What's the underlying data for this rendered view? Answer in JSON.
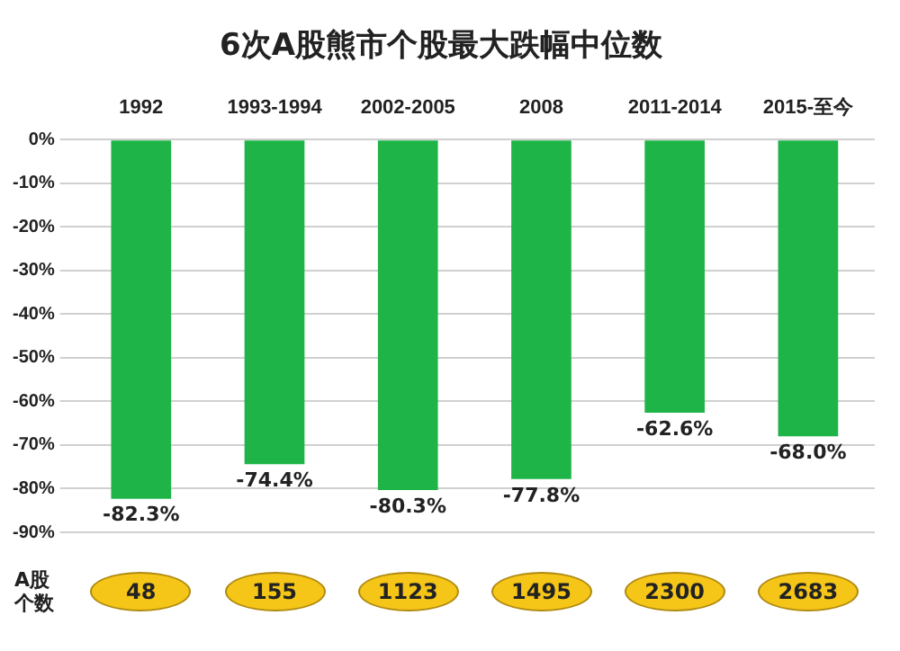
{
  "chart_data": {
    "type": "bar",
    "title": "6次A股熊市个股最大跌幅中位数",
    "categories": [
      "1992",
      "1993-1994",
      "2002-2005",
      "2008",
      "2011-2014",
      "2015-至今"
    ],
    "values": [
      -82.3,
      -74.4,
      -80.3,
      -77.8,
      -62.6,
      -68.0
    ],
    "value_labels": [
      "-82.3%",
      "-74.4%",
      "-80.3%",
      "-77.8%",
      "-62.6%",
      "-68.0%"
    ],
    "color": "#1fb447",
    "ylim": [
      -90,
      0
    ],
    "yticks": [
      {
        "value": 0,
        "label": "0%"
      },
      {
        "value": -10,
        "label": "-10%"
      },
      {
        "value": -20,
        "label": "-20%"
      },
      {
        "value": -30,
        "label": "-30%"
      },
      {
        "value": -40,
        "label": "-40%"
      },
      {
        "value": -50,
        "label": "-50%"
      },
      {
        "value": -60,
        "label": "-60%"
      },
      {
        "value": -70,
        "label": "-70%"
      },
      {
        "value": -80,
        "label": "-80%"
      },
      {
        "value": -90,
        "label": "-90%"
      }
    ],
    "grid": "y",
    "annotations": [
      "A股个数",
      "48",
      "155",
      "1123",
      "1495",
      "2300",
      "2683"
    ]
  }
}
